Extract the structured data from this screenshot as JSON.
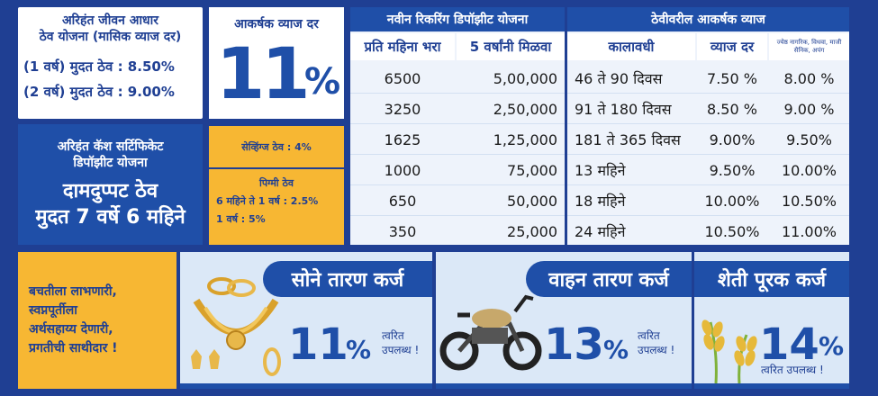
{
  "monthly_scheme": {
    "title_line1": "अरिहंत जीवन आधार",
    "title_line2": "ठेव योजना (मासिक व्याज दर)",
    "row1": "(1 वर्ष) मुदत ठेव :  8.50%",
    "row2": "(2 वर्ष) मुदत ठेव :  9.00%"
  },
  "cash_cert": {
    "line1": "अरिहंत कॅश सर्टिफिकेट",
    "line2": "डिपॉझीट योजना",
    "big1": "दामदुप्पट ठेव",
    "big2": "मुदत 7 वर्षे 6 महिने"
  },
  "rate_box": {
    "header": "आकर्षक व्याज दर",
    "number": "11",
    "percent": "%"
  },
  "savings": {
    "label": "सेव्हिंग्ज ठेव : 4%"
  },
  "pigmy": {
    "title": "पिग्मी ठेव",
    "line1": "6 महिने  ते 1 वर्ष : 2.5%",
    "line2": "1 वर्ष : 5%"
  },
  "rd_table": {
    "title": "नवीन रिकरिंग डिपॉझीट योजना",
    "headers": [
      "प्रति महिना भरा",
      "5 वर्षांनी मिळवा"
    ],
    "rows": [
      [
        "6500",
        "5,00,000"
      ],
      [
        "3250",
        "2,50,000"
      ],
      [
        "1625",
        "1,25,000"
      ],
      [
        "1000",
        "75,000"
      ],
      [
        "650",
        "50,000"
      ],
      [
        "350",
        "25,000"
      ]
    ]
  },
  "fd_table": {
    "title": "ठेवीवरील आकर्षक व्याज",
    "headers": [
      "कालावधी",
      "व्याज दर",
      "ज्येष्ठ नागरिक, विधवा, माजी सैनिक, अपंग"
    ],
    "rows": [
      [
        "46 ते 90 दिवस",
        "7.50 %",
        "8.00 %"
      ],
      [
        "91 ते 180 दिवस",
        "8.50 %",
        "9.00 %"
      ],
      [
        "181 ते 365 दिवस",
        "9.00%",
        "9.50%"
      ],
      [
        "13 महिने",
        "9.50%",
        "10.00%"
      ],
      [
        "18 महिने",
        "10.00%",
        "10.50%"
      ],
      [
        "24 महिने",
        "10.50%",
        "11.00%"
      ]
    ]
  },
  "slogan": {
    "line1": "बचतीला लाभणारी,",
    "line2": "स्वप्नपूर्तीला",
    "line3": "अर्थसहाय्य देणारी,",
    "line4": "प्रगतीची साथीदार !"
  },
  "loans": {
    "gold": {
      "title": "सोने तारण कर्ज",
      "rate": "11",
      "pct": "%",
      "avail1": "त्वरित",
      "avail2": "उपलब्ध !",
      "icon": "gold-jewellery-icon"
    },
    "vehicle": {
      "title": "वाहन तारण कर्ज",
      "rate": "13",
      "pct": "%",
      "avail1": "त्वरित",
      "avail2": "उपलब्ध !",
      "icon": "motorcycle-icon"
    },
    "farm": {
      "title": "शेती पूरक कर्ज",
      "rate": "14",
      "pct": "%",
      "avail1": "त्वरित उपलब्ध !",
      "icon": "wheat-icon"
    }
  },
  "colors": {
    "brand_blue": "#1f4fa8",
    "dark_blue": "#1f3f93",
    "yellow": "#f7b733",
    "light_blue": "#dbe8f7"
  }
}
